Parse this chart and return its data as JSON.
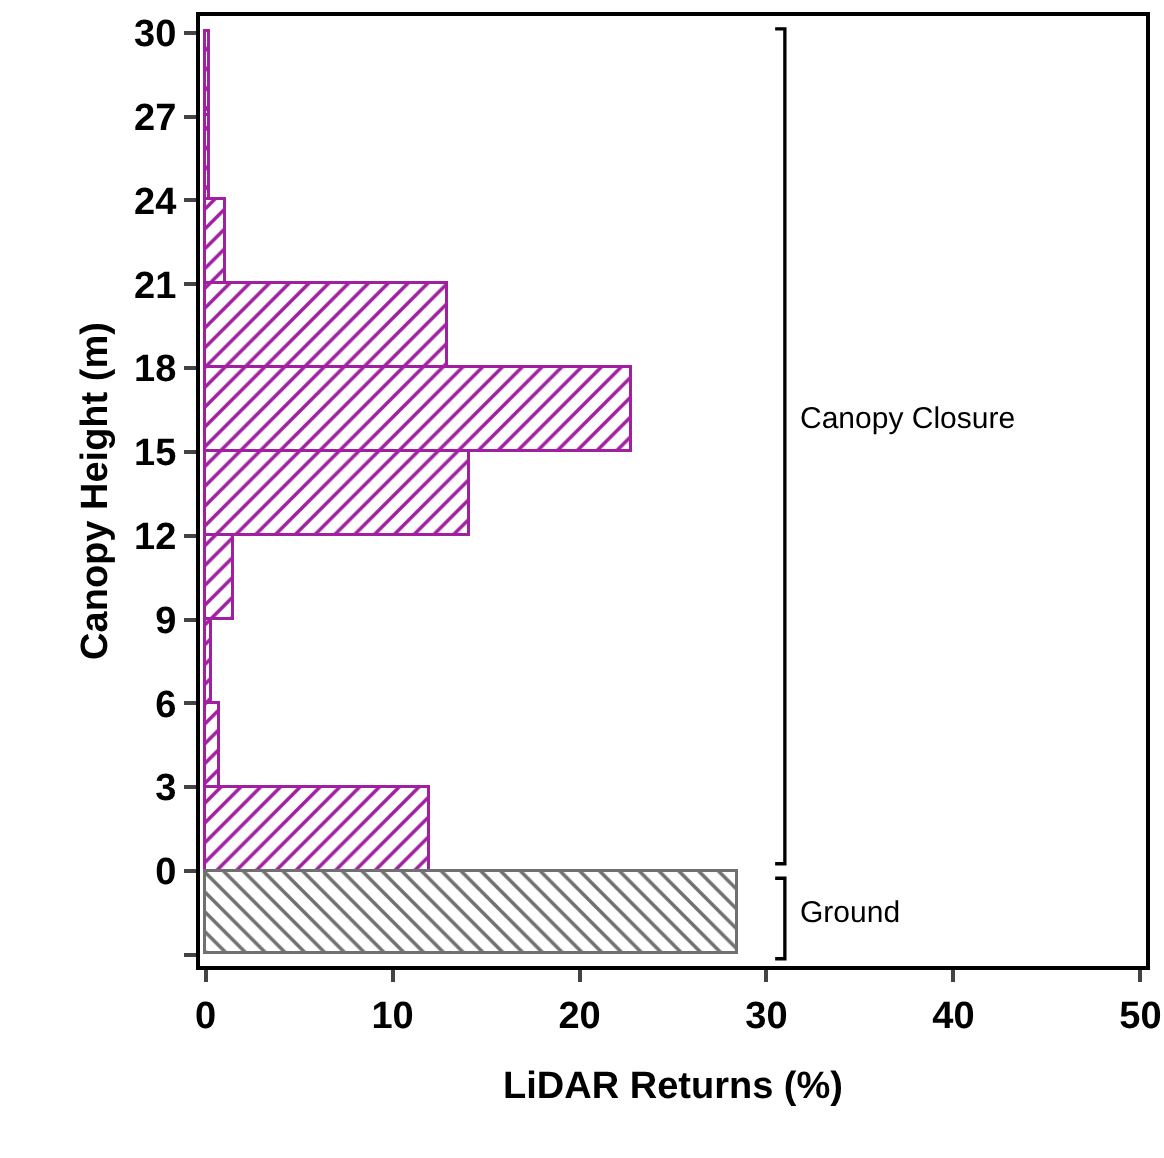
{
  "chart_data": {
    "type": "histogram",
    "orientation": "horizontal",
    "xlabel": "LiDAR Returns (%)",
    "ylabel": "Canopy Height (m)",
    "bins": [
      -3,
      0,
      3,
      6,
      9,
      12,
      15,
      18,
      21,
      24,
      27,
      30
    ],
    "series": [
      {
        "name": "Canopy Closure",
        "color": "#a020a0",
        "values": [
          null,
          12.0,
          0.8,
          0.3,
          1.5,
          14.1,
          22.8,
          13.0,
          1.1,
          0.2,
          0.2
        ]
      },
      {
        "name": "Ground",
        "color": "#707070",
        "values": [
          28.5,
          null,
          null,
          null,
          null,
          null,
          null,
          null,
          null,
          null,
          null
        ]
      }
    ],
    "xlim": [
      -0.3,
      50.3
    ],
    "xticks": [
      0,
      10,
      20,
      30,
      40,
      50
    ],
    "ylim": [
      -3.4,
      30.6
    ],
    "yticks": [
      {
        "value": -3,
        "label": null
      },
      0,
      3,
      6,
      9,
      12,
      15,
      18,
      21,
      24,
      27,
      30
    ],
    "grid": false,
    "legend": false
  }
}
